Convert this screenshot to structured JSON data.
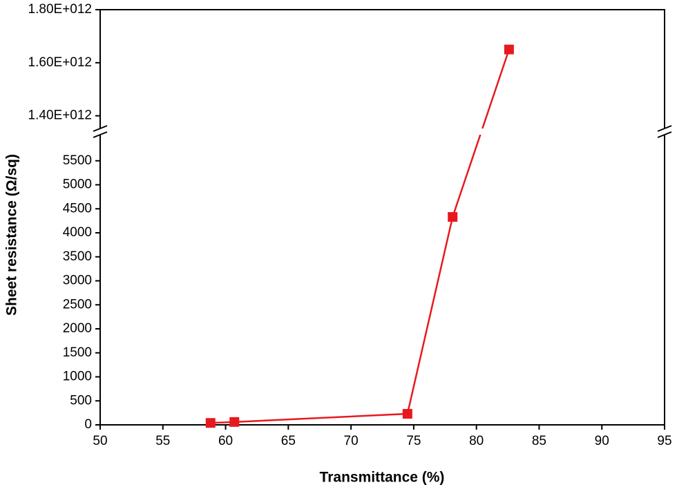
{
  "chart_data": {
    "type": "line",
    "x_label": "Transmittance (%)",
    "y_label": "Sheet resistance (Ω/sq)",
    "x": [
      58.8,
      60.7,
      74.5,
      78.1,
      82.6
    ],
    "series": [
      {
        "color": "#e8191e",
        "values": [
          40,
          60,
          230,
          4330,
          1650000000000
        ]
      }
    ],
    "xlim": [
      50,
      95
    ],
    "xticks": [
      50,
      55,
      60,
      65,
      70,
      75,
      80,
      85,
      90,
      95
    ],
    "ylim": [
      0,
      6000
    ],
    "yticks": [
      0,
      500,
      1000,
      1500,
      2000,
      2500,
      3000,
      3500,
      4000,
      4500,
      5000,
      5500
    ],
    "y_break": {
      "ylim": [
        1360000000000,
        1800000000000
      ],
      "yticks": [
        {
          "value": 1400000000000,
          "label": "1.40E+012"
        },
        {
          "value": 1600000000000,
          "label": "1.60E+012"
        },
        {
          "value": 1800000000000,
          "label": "1.80E+012"
        }
      ]
    }
  }
}
